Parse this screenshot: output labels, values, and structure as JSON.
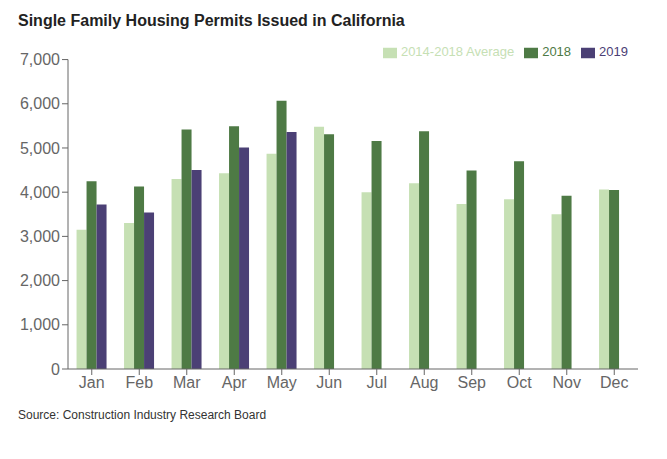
{
  "chart_data": {
    "type": "bar",
    "title": "Single Family Housing Permits Issued in California",
    "annotations": [
      "Source: Construction Industry Research Board"
    ],
    "categories": [
      "Jan",
      "Feb",
      "Mar",
      "Apr",
      "May",
      "Jun",
      "Jul",
      "Aug",
      "Sep",
      "Oct",
      "Nov",
      "Dec"
    ],
    "series": [
      {
        "name": "2014-2018 Average",
        "color": "#c6e0b4",
        "values": [
          3150,
          3300,
          4300,
          4430,
          4870,
          5480,
          4000,
          4200,
          3730,
          3840,
          3500,
          4060
        ]
      },
      {
        "name": "2018",
        "color": "#4e7a45",
        "values": [
          4250,
          4130,
          5420,
          5490,
          6070,
          5310,
          5160,
          5380,
          4490,
          4700,
          3920,
          4050
        ]
      },
      {
        "name": "2019",
        "color": "#4b4075",
        "values": [
          3720,
          3540,
          4500,
          5010,
          5360,
          null,
          null,
          null,
          null,
          null,
          null,
          null
        ]
      }
    ],
    "ylim": [
      0,
      7000
    ],
    "yticks": [
      0,
      {
        "value": 1000,
        "label": "1,000"
      },
      {
        "value": 2000,
        "label": "2,000"
      },
      {
        "value": 3000,
        "label": "3,000"
      },
      {
        "value": 4000,
        "label": "4,000"
      },
      {
        "value": 5000,
        "label": "5,000"
      },
      {
        "value": 6000,
        "label": "6,000"
      },
      {
        "value": 7000,
        "label": "7,000"
      }
    ],
    "grid": false,
    "legend": "upper right"
  }
}
